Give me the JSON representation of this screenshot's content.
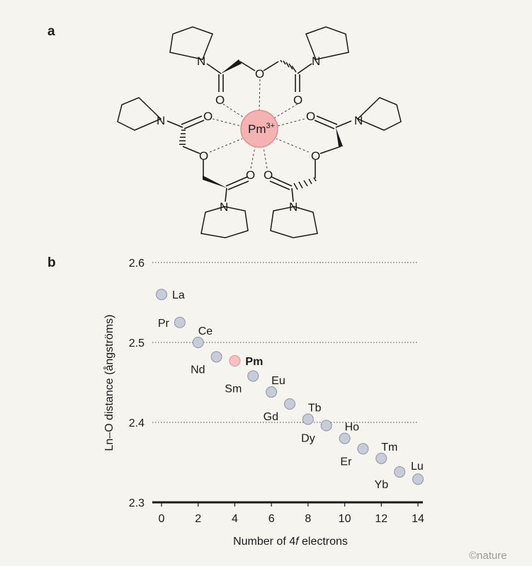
{
  "panels": {
    "a": "a",
    "b": "b"
  },
  "molecule": {
    "metal": "Pm",
    "charge": "3+",
    "atom_O": "O",
    "atom_N": "N",
    "metal_color": "#f4b3b3",
    "metal_stroke": "#e28c8c"
  },
  "credit": "©nature",
  "chart_data": {
    "type": "scatter",
    "xlabel_prefix": "Number of 4",
    "xlabel_italic": "f",
    "xlabel_suffix": " electrons",
    "ylabel": "Ln–O distance (ångströms)",
    "xlim": [
      0,
      14
    ],
    "ylim": [
      2.3,
      2.6
    ],
    "xticks": [
      0,
      2,
      4,
      6,
      8,
      10,
      12,
      14
    ],
    "yticks": [
      2.3,
      2.4,
      2.5,
      2.6
    ],
    "ytick_labels": [
      "2.3",
      "2.4",
      "2.5",
      "2.6"
    ],
    "grid": "horizontal dotted",
    "point_color": "#c8ccd8",
    "point_stroke": "#8d93a6",
    "highlight_color": "#f6c1c1",
    "highlight_stroke": "#e08f8f",
    "points": [
      {
        "element": "La",
        "x": 0,
        "y": 2.56,
        "label_pos": "right"
      },
      {
        "element": "Ce",
        "x": 2,
        "y": 2.5,
        "label_pos": "above-right"
      },
      {
        "element": "Pr",
        "x": 1,
        "y": 2.525,
        "label_pos": "left"
      },
      {
        "element": "Nd",
        "x": 3,
        "y": 2.482,
        "label_pos": "below-left"
      },
      {
        "element": "Pm",
        "x": 4,
        "y": 2.477,
        "label_pos": "right",
        "highlight": true
      },
      {
        "element": "Sm",
        "x": 5,
        "y": 2.458,
        "label_pos": "below-left"
      },
      {
        "element": "Eu",
        "x": 6,
        "y": 2.438,
        "label_pos": "above-right"
      },
      {
        "element": "Gd",
        "x": 7,
        "y": 2.423,
        "label_pos": "below-left"
      },
      {
        "element": "Tb",
        "x": 8,
        "y": 2.404,
        "label_pos": "above-right"
      },
      {
        "element": "Dy",
        "x": 9,
        "y": 2.396,
        "label_pos": "below-left"
      },
      {
        "element": "Ho",
        "x": 10,
        "y": 2.38,
        "label_pos": "above-right"
      },
      {
        "element": "Er",
        "x": 11,
        "y": 2.367,
        "label_pos": "below-left"
      },
      {
        "element": "Tm",
        "x": 12,
        "y": 2.355,
        "label_pos": "above-right"
      },
      {
        "element": "Yb",
        "x": 13,
        "y": 2.338,
        "label_pos": "below-left"
      },
      {
        "element": "Lu",
        "x": 14,
        "y": 2.329,
        "label_pos": "above"
      }
    ]
  }
}
